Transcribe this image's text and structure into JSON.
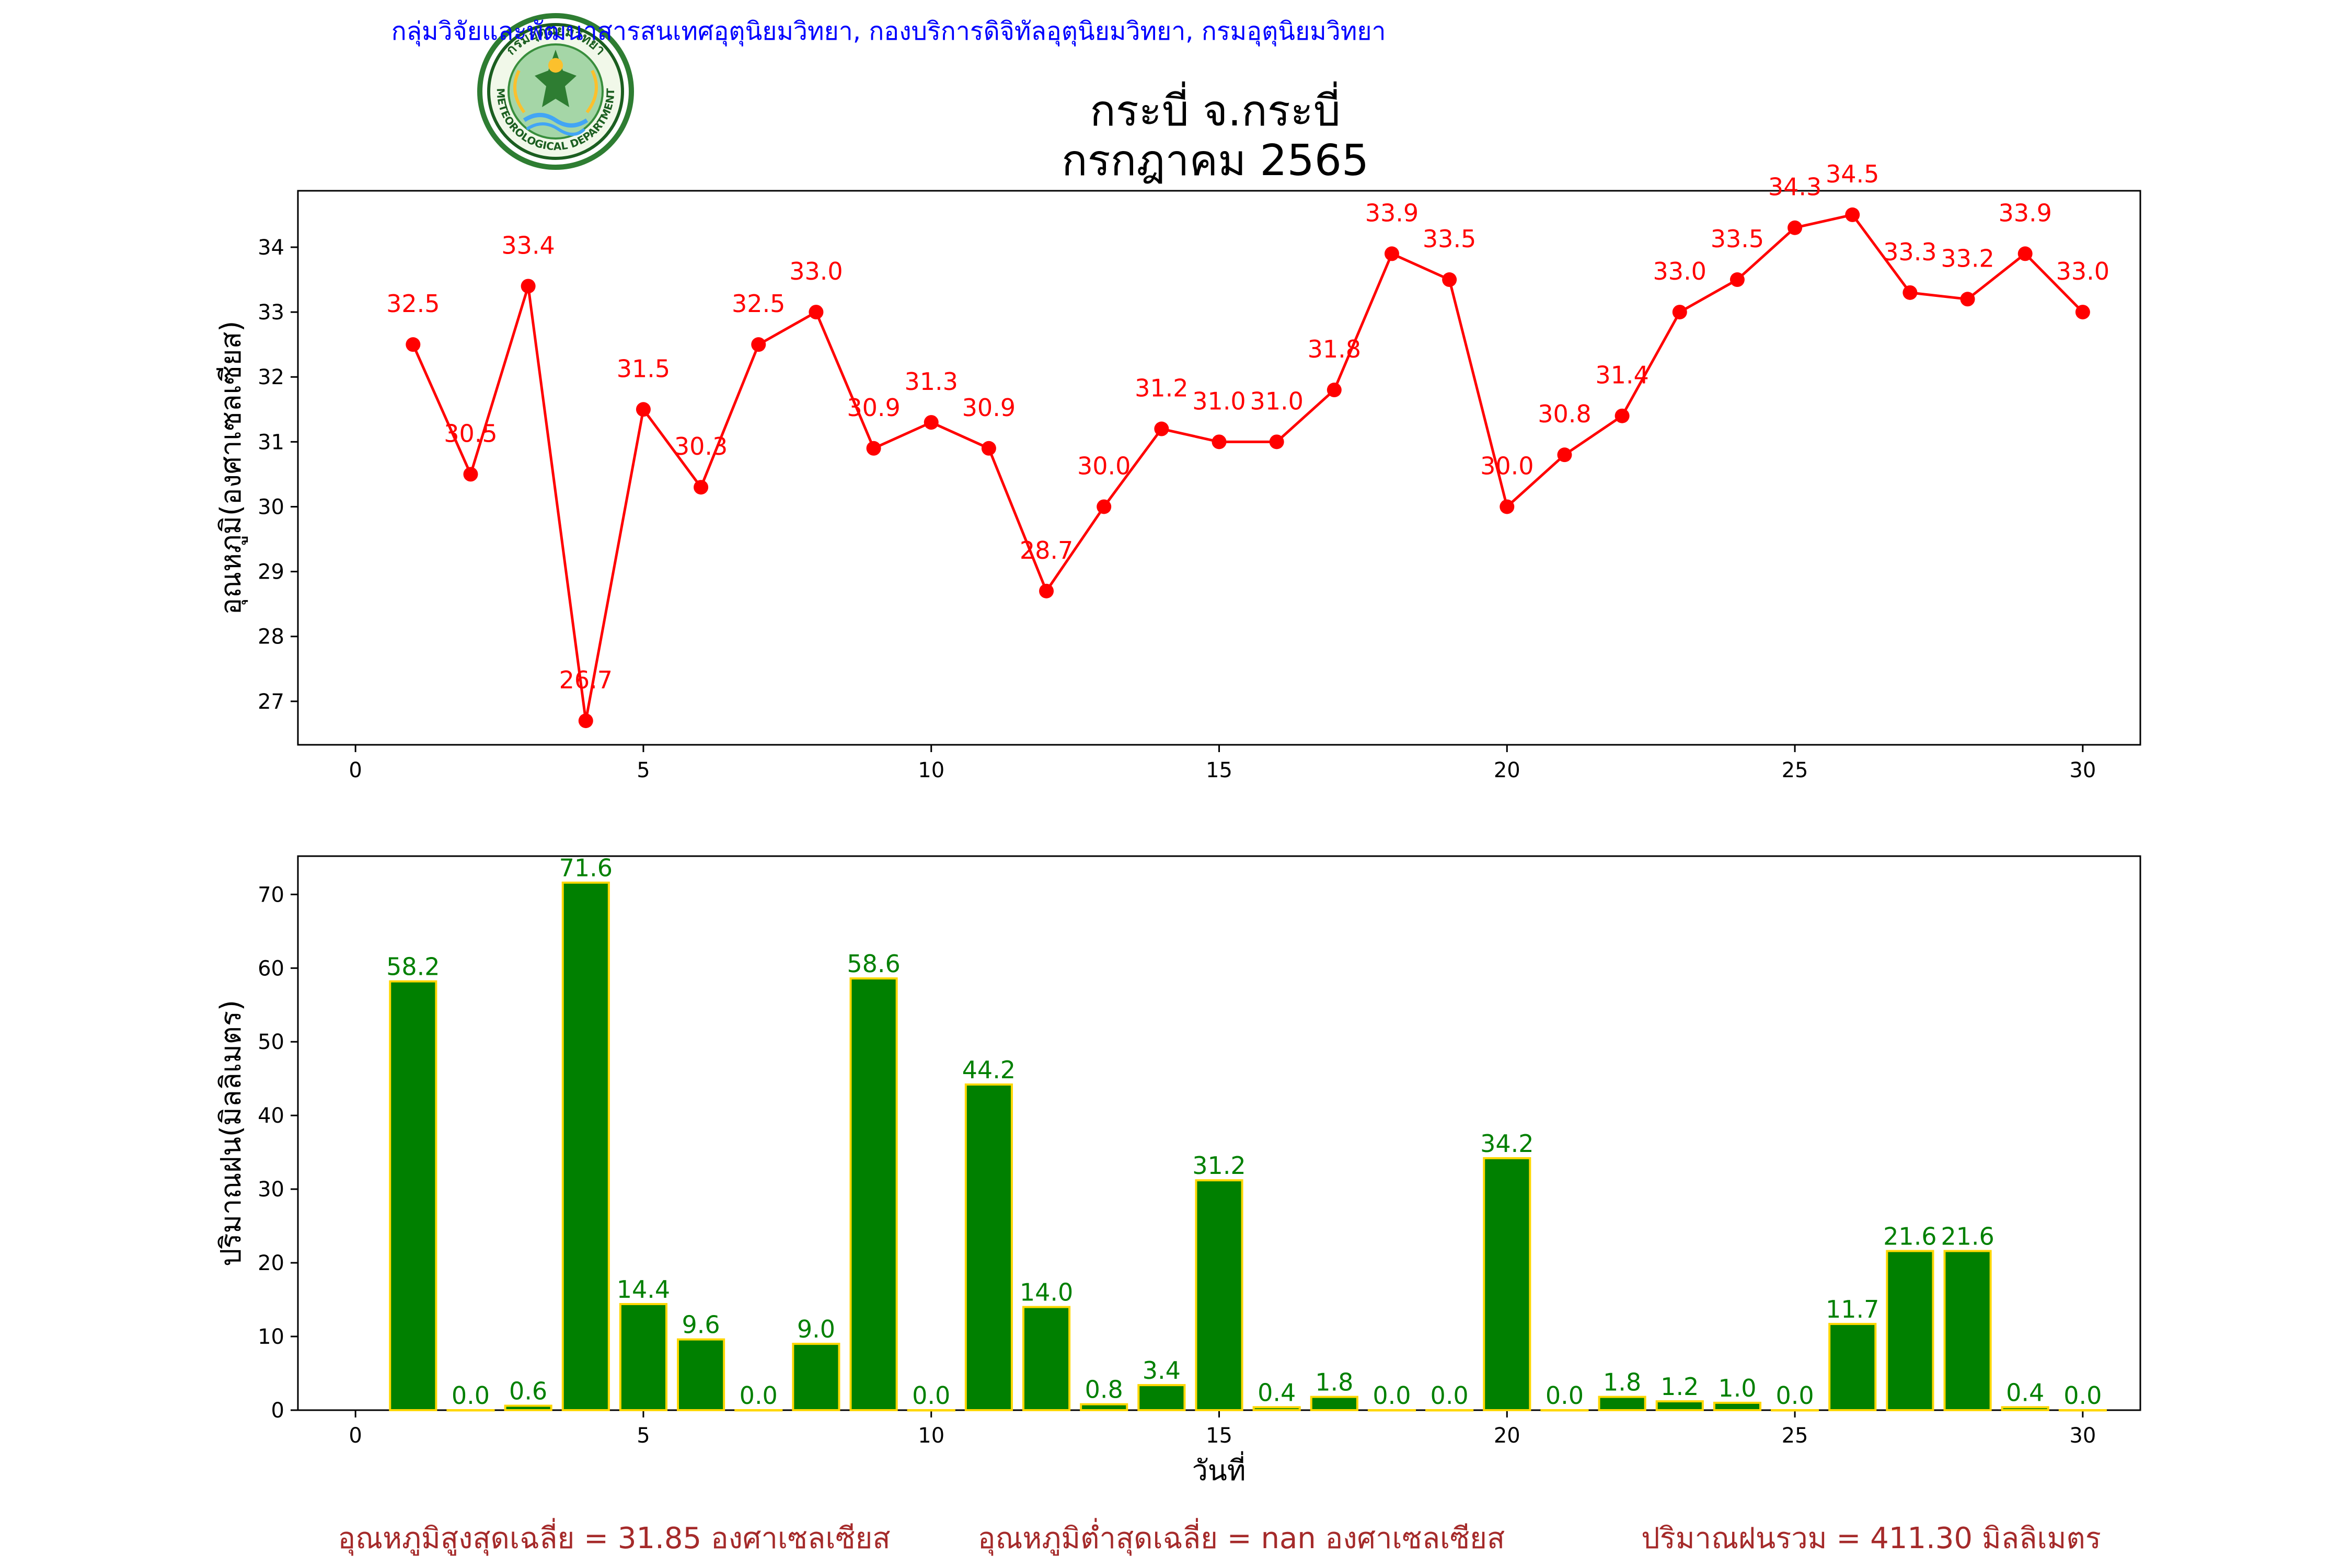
{
  "header": {
    "organization": "กลุ่มวิจัยและพัฒนาสารสนเทศอุตุนิยมวิทยา, กองบริการดิจิทัลอุตุนิยมวิทยา, กรมอุตุนิยมวิทยา",
    "logo_text_top": "กรมอุตุนิยมวิทยา",
    "logo_text_bottom": "METEOROLOGICAL DEPARTMENT"
  },
  "title": {
    "line1": "กระบี่ จ.กระบี่",
    "line2": "กรกฎาคม 2565"
  },
  "colors": {
    "temperature": "#ff0000",
    "rain_fill": "#008000",
    "rain_edge": "#ffd700",
    "footer": "#a52a2a",
    "header": "#0000ff"
  },
  "chart_data": [
    {
      "type": "line",
      "ylabel": "อุณหภูมิ(องศาเซลเซียส)",
      "xlabel": "",
      "xlim": [
        -1,
        31
      ],
      "ylim": [
        26.33,
        34.87
      ],
      "xticks": [
        0,
        5,
        10,
        15,
        20,
        25,
        30
      ],
      "yticks": [
        27,
        28,
        29,
        30,
        31,
        32,
        33,
        34
      ],
      "x": [
        1,
        2,
        3,
        4,
        5,
        6,
        7,
        8,
        9,
        10,
        11,
        12,
        13,
        14,
        15,
        16,
        17,
        18,
        19,
        20,
        21,
        22,
        23,
        24,
        25,
        26,
        27,
        28,
        29,
        30
      ],
      "values": [
        32.5,
        30.5,
        33.4,
        26.7,
        31.5,
        30.3,
        32.5,
        33.0,
        30.9,
        31.3,
        30.9,
        28.7,
        30.0,
        31.2,
        31.0,
        31.0,
        31.8,
        33.9,
        33.5,
        30.0,
        30.8,
        31.4,
        33.0,
        33.5,
        34.3,
        34.5,
        33.3,
        33.2,
        33.9,
        33.0
      ],
      "labels": [
        "32.5",
        "30.5",
        "33.4",
        "26.7",
        "31.5",
        "30.3",
        "32.5",
        "33.0",
        "30.9",
        "31.3",
        "30.9",
        "28.7",
        "30.0",
        "31.2",
        "31.0",
        "31.0",
        "31.8",
        "33.9",
        "33.5",
        "30.0",
        "30.8",
        "31.4",
        "33.0",
        "33.5",
        "34.3",
        "34.5",
        "33.3",
        "33.2",
        "33.9",
        "33.0"
      ],
      "marker": "circle"
    },
    {
      "type": "bar",
      "ylabel": "ปริมาณฝน(มิลลิเมตร)",
      "xlabel": "วันที่",
      "xlim": [
        -1,
        31
      ],
      "ylim": [
        0,
        75.2
      ],
      "xticks": [
        0,
        5,
        10,
        15,
        20,
        25,
        30
      ],
      "yticks": [
        0,
        10,
        20,
        30,
        40,
        50,
        60,
        70
      ],
      "x": [
        1,
        2,
        3,
        4,
        5,
        6,
        7,
        8,
        9,
        10,
        11,
        12,
        13,
        14,
        15,
        16,
        17,
        18,
        19,
        20,
        21,
        22,
        23,
        24,
        25,
        26,
        27,
        28,
        29,
        30
      ],
      "values": [
        58.2,
        0.0,
        0.6,
        71.6,
        14.4,
        9.6,
        0.0,
        9.0,
        58.6,
        0.0,
        44.2,
        14.0,
        0.8,
        3.4,
        31.2,
        0.4,
        1.8,
        0.0,
        0.0,
        34.2,
        0.0,
        1.8,
        1.2,
        1.0,
        0.0,
        11.7,
        21.6,
        21.6,
        0.4,
        0.0
      ],
      "labels": [
        "58.2",
        "0.0",
        "0.6",
        "71.6",
        "14.4",
        "9.6",
        "0.0",
        "9.0",
        "58.6",
        "0.0",
        "44.2",
        "14.0",
        "0.8",
        "3.4",
        "31.2",
        "0.4",
        "1.8",
        "0.0",
        "0.0",
        "34.2",
        "0.0",
        "1.8",
        "1.2",
        "1.0",
        "0.0",
        "11.7",
        "21.6",
        "21.6",
        "0.4",
        "0.0"
      ],
      "bar_width": 0.8
    }
  ],
  "footer": {
    "avg_max": "อุณหภูมิสูงสุดเฉลี่ย = 31.85 องศาเซลเซียส",
    "avg_min": "อุณหภูมิต่ำสุดเฉลี่ย = nan องศาเซลเซียส",
    "rain_total": "ปริมาณฝนรวม = 411.30 มิลลิเมตร"
  }
}
